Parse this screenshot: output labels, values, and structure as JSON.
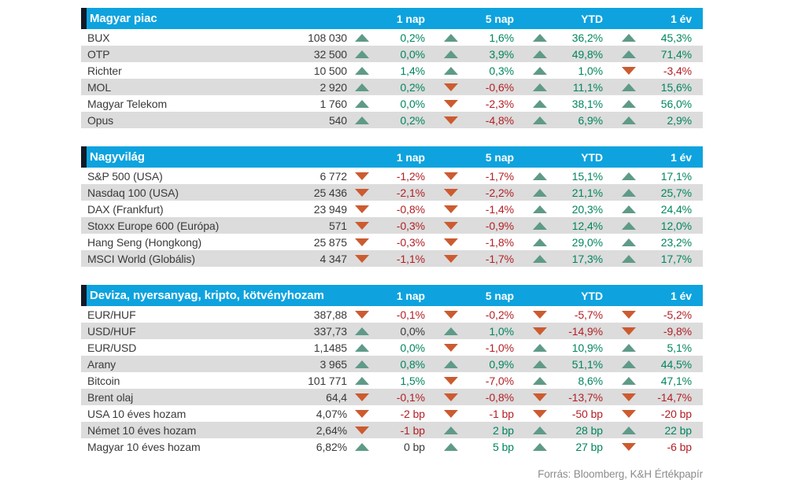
{
  "theme": {
    "header_bg": "#0ea3de",
    "accent_bar": "#101a28",
    "stripe": "#dcdcdc",
    "pos": "#00855f",
    "neg": "#b32025",
    "neu": "#3a3a3a",
    "up": "#5f9a89",
    "down": "#cc5b30",
    "text": "#3a3a3a",
    "footer": "#8c8c8c"
  },
  "columns": [
    "1 nap",
    "5 nap",
    "YTD",
    "1 év"
  ],
  "footer": {
    "text": "Forrás: Bloomberg, K&H Értékpapír"
  },
  "tables": [
    {
      "title": "Magyar piac",
      "rows": [
        {
          "name": "BUX",
          "value": "108 030",
          "changes": [
            {
              "dir": "up",
              "val": "0,2%",
              "tone": "pos"
            },
            {
              "dir": "up",
              "val": "1,6%",
              "tone": "pos"
            },
            {
              "dir": "up",
              "val": "36,2%",
              "tone": "pos"
            },
            {
              "dir": "up",
              "val": "45,3%",
              "tone": "pos"
            }
          ]
        },
        {
          "name": "OTP",
          "value": "32 500",
          "changes": [
            {
              "dir": "up",
              "val": "0,0%",
              "tone": "pos"
            },
            {
              "dir": "up",
              "val": "3,9%",
              "tone": "pos"
            },
            {
              "dir": "up",
              "val": "49,8%",
              "tone": "pos"
            },
            {
              "dir": "up",
              "val": "71,4%",
              "tone": "pos"
            }
          ]
        },
        {
          "name": "Richter",
          "value": "10 500",
          "changes": [
            {
              "dir": "up",
              "val": "1,4%",
              "tone": "pos"
            },
            {
              "dir": "up",
              "val": "0,3%",
              "tone": "pos"
            },
            {
              "dir": "up",
              "val": "1,0%",
              "tone": "pos"
            },
            {
              "dir": "down",
              "val": "-3,4%",
              "tone": "neg"
            }
          ]
        },
        {
          "name": "MOL",
          "value": "2 920",
          "changes": [
            {
              "dir": "up",
              "val": "0,2%",
              "tone": "pos"
            },
            {
              "dir": "down",
              "val": "-0,6%",
              "tone": "neg"
            },
            {
              "dir": "up",
              "val": "11,1%",
              "tone": "pos"
            },
            {
              "dir": "up",
              "val": "15,6%",
              "tone": "pos"
            }
          ]
        },
        {
          "name": "Magyar Telekom",
          "value": "1 760",
          "changes": [
            {
              "dir": "up",
              "val": "0,0%",
              "tone": "pos"
            },
            {
              "dir": "down",
              "val": "-2,3%",
              "tone": "neg"
            },
            {
              "dir": "up",
              "val": "38,1%",
              "tone": "pos"
            },
            {
              "dir": "up",
              "val": "56,0%",
              "tone": "pos"
            }
          ]
        },
        {
          "name": "Opus",
          "value": "540",
          "changes": [
            {
              "dir": "up",
              "val": "0,2%",
              "tone": "pos"
            },
            {
              "dir": "down",
              "val": "-4,8%",
              "tone": "neg"
            },
            {
              "dir": "up",
              "val": "6,9%",
              "tone": "pos"
            },
            {
              "dir": "up",
              "val": "2,9%",
              "tone": "pos"
            }
          ]
        }
      ]
    },
    {
      "title": "Nagyvilág",
      "rows": [
        {
          "name": "S&P 500 (USA)",
          "value": "6 772",
          "changes": [
            {
              "dir": "down",
              "val": "-1,2%",
              "tone": "neg"
            },
            {
              "dir": "down",
              "val": "-1,7%",
              "tone": "neg"
            },
            {
              "dir": "up",
              "val": "15,1%",
              "tone": "pos"
            },
            {
              "dir": "up",
              "val": "17,1%",
              "tone": "pos"
            }
          ]
        },
        {
          "name": "Nasdaq 100 (USA)",
          "value": "25 436",
          "changes": [
            {
              "dir": "down",
              "val": "-2,1%",
              "tone": "neg"
            },
            {
              "dir": "down",
              "val": "-2,2%",
              "tone": "neg"
            },
            {
              "dir": "up",
              "val": "21,1%",
              "tone": "pos"
            },
            {
              "dir": "up",
              "val": "25,7%",
              "tone": "pos"
            }
          ]
        },
        {
          "name": "DAX (Frankfurt)",
          "value": "23 949",
          "changes": [
            {
              "dir": "down",
              "val": "-0,8%",
              "tone": "neg"
            },
            {
              "dir": "down",
              "val": "-1,4%",
              "tone": "neg"
            },
            {
              "dir": "up",
              "val": "20,3%",
              "tone": "pos"
            },
            {
              "dir": "up",
              "val": "24,4%",
              "tone": "pos"
            }
          ]
        },
        {
          "name": "Stoxx Europe 600 (Európa)",
          "value": "571",
          "changes": [
            {
              "dir": "down",
              "val": "-0,3%",
              "tone": "neg"
            },
            {
              "dir": "down",
              "val": "-0,9%",
              "tone": "neg"
            },
            {
              "dir": "up",
              "val": "12,4%",
              "tone": "pos"
            },
            {
              "dir": "up",
              "val": "12,0%",
              "tone": "pos"
            }
          ]
        },
        {
          "name": "Hang Seng (Hongkong)",
          "value": "25 875",
          "changes": [
            {
              "dir": "down",
              "val": "-0,3%",
              "tone": "neg"
            },
            {
              "dir": "down",
              "val": "-1,8%",
              "tone": "neg"
            },
            {
              "dir": "up",
              "val": "29,0%",
              "tone": "pos"
            },
            {
              "dir": "up",
              "val": "23,2%",
              "tone": "pos"
            }
          ]
        },
        {
          "name": "MSCI World (Globális)",
          "value": "4 347",
          "changes": [
            {
              "dir": "down",
              "val": "-1,1%",
              "tone": "neg"
            },
            {
              "dir": "down",
              "val": "-1,7%",
              "tone": "neg"
            },
            {
              "dir": "up",
              "val": "17,3%",
              "tone": "pos"
            },
            {
              "dir": "up",
              "val": "17,7%",
              "tone": "pos"
            }
          ]
        }
      ]
    },
    {
      "title": "Deviza, nyersanyag, kripto, kötvényhozam",
      "rows": [
        {
          "name": "EUR/HUF",
          "value": "387,88",
          "changes": [
            {
              "dir": "down",
              "val": "-0,1%",
              "tone": "neg"
            },
            {
              "dir": "down",
              "val": "-0,2%",
              "tone": "neg"
            },
            {
              "dir": "down",
              "val": "-5,7%",
              "tone": "neg"
            },
            {
              "dir": "down",
              "val": "-5,2%",
              "tone": "neg"
            }
          ]
        },
        {
          "name": "USD/HUF",
          "value": "337,73",
          "changes": [
            {
              "dir": "up",
              "val": "0,0%",
              "tone": "neu"
            },
            {
              "dir": "up",
              "val": "1,0%",
              "tone": "pos"
            },
            {
              "dir": "down",
              "val": "-14,9%",
              "tone": "neg"
            },
            {
              "dir": "down",
              "val": "-9,8%",
              "tone": "neg"
            }
          ]
        },
        {
          "name": "EUR/USD",
          "value": "1,1485",
          "changes": [
            {
              "dir": "up",
              "val": "0,0%",
              "tone": "pos"
            },
            {
              "dir": "down",
              "val": "-1,0%",
              "tone": "neg"
            },
            {
              "dir": "up",
              "val": "10,9%",
              "tone": "pos"
            },
            {
              "dir": "up",
              "val": "5,1%",
              "tone": "pos"
            }
          ]
        },
        {
          "name": "Arany",
          "value": "3 965",
          "changes": [
            {
              "dir": "up",
              "val": "0,8%",
              "tone": "pos"
            },
            {
              "dir": "up",
              "val": "0,9%",
              "tone": "pos"
            },
            {
              "dir": "up",
              "val": "51,1%",
              "tone": "pos"
            },
            {
              "dir": "up",
              "val": "44,5%",
              "tone": "pos"
            }
          ]
        },
        {
          "name": "Bitcoin",
          "value": "101 771",
          "changes": [
            {
              "dir": "up",
              "val": "1,5%",
              "tone": "pos"
            },
            {
              "dir": "down",
              "val": "-7,0%",
              "tone": "neg"
            },
            {
              "dir": "up",
              "val": "8,6%",
              "tone": "pos"
            },
            {
              "dir": "up",
              "val": "47,1%",
              "tone": "pos"
            }
          ]
        },
        {
          "name": "Brent olaj",
          "value": "64,4",
          "changes": [
            {
              "dir": "down",
              "val": "-0,1%",
              "tone": "neg"
            },
            {
              "dir": "down",
              "val": "-0,8%",
              "tone": "neg"
            },
            {
              "dir": "down",
              "val": "-13,7%",
              "tone": "neg"
            },
            {
              "dir": "down",
              "val": "-14,7%",
              "tone": "neg"
            }
          ]
        },
        {
          "name": "USA 10 éves hozam",
          "value": "4,07%",
          "changes": [
            {
              "dir": "down",
              "val": "-2 bp",
              "tone": "neg"
            },
            {
              "dir": "down",
              "val": "-1 bp",
              "tone": "neg"
            },
            {
              "dir": "down",
              "val": "-50 bp",
              "tone": "neg"
            },
            {
              "dir": "down",
              "val": "-20 bp",
              "tone": "neg"
            }
          ]
        },
        {
          "name": "Német 10 éves hozam",
          "value": "2,64%",
          "changes": [
            {
              "dir": "down",
              "val": "-1 bp",
              "tone": "neg"
            },
            {
              "dir": "up",
              "val": "2 bp",
              "tone": "pos"
            },
            {
              "dir": "up",
              "val": "28 bp",
              "tone": "pos"
            },
            {
              "dir": "up",
              "val": "22 bp",
              "tone": "pos"
            }
          ]
        },
        {
          "name": "Magyar 10 éves hozam",
          "value": "6,82%",
          "changes": [
            {
              "dir": "up",
              "val": "0 bp",
              "tone": "neu"
            },
            {
              "dir": "up",
              "val": "5 bp",
              "tone": "pos"
            },
            {
              "dir": "up",
              "val": "27 bp",
              "tone": "pos"
            },
            {
              "dir": "down",
              "val": "-6 bp",
              "tone": "neg"
            }
          ]
        }
      ]
    }
  ]
}
